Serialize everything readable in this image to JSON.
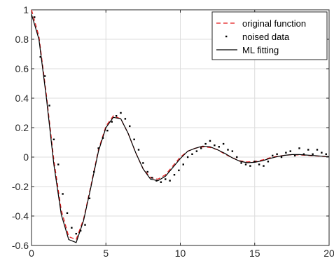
{
  "chart_data": {
    "type": "line",
    "title": "",
    "xlabel": "",
    "ylabel": "",
    "xlim": [
      0,
      20
    ],
    "ylim": [
      -0.6,
      1
    ],
    "xticks": [
      0,
      5,
      10,
      15,
      20
    ],
    "yticks": [
      -0.6,
      -0.4,
      -0.2,
      0,
      0.2,
      0.4,
      0.6,
      0.8,
      1
    ],
    "grid": true,
    "legend_position": "top-right",
    "series": [
      {
        "name": "original function",
        "style": "dashed-line",
        "color": "#e41a1c",
        "x": [
          0,
          0.5,
          1,
          1.5,
          2,
          2.5,
          3,
          3.5,
          4,
          4.5,
          5,
          5.5,
          6,
          6.5,
          7,
          7.5,
          8,
          8.5,
          9,
          9.5,
          10,
          10.5,
          11,
          11.5,
          12,
          12.5,
          13,
          13.5,
          14,
          14.5,
          15,
          15.5,
          16,
          16.5,
          17,
          17.5,
          18,
          18.5,
          19,
          19.5,
          20
        ],
        "y": [
          1.0,
          0.82,
          0.42,
          -0.02,
          -0.36,
          -0.54,
          -0.56,
          -0.42,
          -0.19,
          0.05,
          0.21,
          0.28,
          0.26,
          0.16,
          0.03,
          -0.08,
          -0.14,
          -0.15,
          -0.12,
          -0.06,
          0.0,
          0.04,
          0.06,
          0.07,
          0.065,
          0.05,
          0.02,
          -0.005,
          -0.025,
          -0.033,
          -0.03,
          -0.02,
          -0.005,
          0.005,
          0.012,
          0.016,
          0.015,
          0.012,
          0.008,
          0.005,
          0.003
        ]
      },
      {
        "name": "noised data",
        "style": "markers",
        "color": "#000000",
        "x": [
          0.2,
          0.6,
          0.9,
          1.2,
          1.5,
          1.8,
          2.1,
          2.4,
          2.7,
          3.0,
          3.3,
          3.6,
          3.9,
          4.2,
          4.5,
          4.8,
          5.1,
          5.4,
          5.7,
          6.0,
          6.3,
          6.6,
          6.9,
          7.2,
          7.5,
          7.8,
          8.1,
          8.4,
          8.7,
          9.0,
          9.3,
          9.6,
          9.9,
          10.2,
          10.5,
          10.8,
          11.1,
          11.4,
          11.7,
          12.0,
          12.3,
          12.6,
          12.9,
          13.2,
          13.5,
          13.8,
          14.1,
          14.4,
          14.7,
          15.0,
          15.3,
          15.6,
          15.9,
          16.2,
          16.5,
          16.8,
          17.1,
          17.4,
          17.7,
          18.0,
          18.3,
          18.6,
          18.9,
          19.2,
          19.5,
          19.8
        ],
        "y": [
          0.95,
          0.68,
          0.55,
          0.35,
          0.12,
          -0.05,
          -0.25,
          -0.38,
          -0.48,
          -0.52,
          -0.5,
          -0.46,
          -0.28,
          -0.1,
          0.06,
          0.13,
          0.18,
          0.24,
          0.28,
          0.3,
          0.26,
          0.21,
          0.12,
          0.05,
          -0.04,
          -0.1,
          -0.14,
          -0.16,
          -0.17,
          -0.15,
          -0.16,
          -0.12,
          -0.09,
          -0.05,
          0.0,
          0.02,
          0.04,
          0.06,
          0.09,
          0.11,
          0.08,
          0.07,
          0.09,
          0.05,
          0.04,
          0.0,
          -0.04,
          -0.05,
          -0.06,
          -0.03,
          -0.05,
          -0.06,
          -0.03,
          0.01,
          0.02,
          0.0,
          0.03,
          0.04,
          0.01,
          0.06,
          0.02,
          0.05,
          0.02,
          0.05,
          0.03,
          0.02
        ]
      },
      {
        "name": "ML fitting",
        "style": "solid-line",
        "color": "#000000",
        "x": [
          0,
          0.5,
          1,
          1.5,
          2,
          2.5,
          3,
          3.5,
          4,
          4.5,
          5,
          5.5,
          6,
          6.5,
          7,
          7.5,
          8,
          8.5,
          9,
          9.5,
          10,
          10.5,
          11,
          11.5,
          12,
          12.5,
          13,
          13.5,
          14,
          14.5,
          15,
          15.5,
          16,
          16.5,
          17,
          17.5,
          18,
          18.5,
          19,
          19.5,
          20
        ],
        "y": [
          0.97,
          0.8,
          0.4,
          -0.05,
          -0.39,
          -0.56,
          -0.58,
          -0.43,
          -0.2,
          0.04,
          0.2,
          0.27,
          0.26,
          0.16,
          0.03,
          -0.08,
          -0.15,
          -0.16,
          -0.13,
          -0.07,
          -0.01,
          0.04,
          0.06,
          0.075,
          0.07,
          0.05,
          0.025,
          -0.005,
          -0.028,
          -0.038,
          -0.035,
          -0.025,
          -0.01,
          0.003,
          0.012,
          0.017,
          0.017,
          0.014,
          0.01,
          0.006,
          0.003
        ]
      }
    ]
  }
}
